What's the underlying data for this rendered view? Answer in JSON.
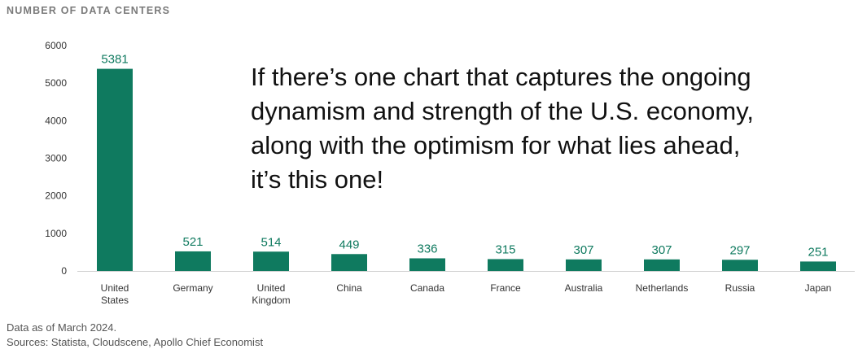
{
  "chart_data": {
    "type": "bar",
    "title": "NUMBER OF DATA CENTERS",
    "categories": [
      [
        "United",
        "States"
      ],
      [
        "Germany"
      ],
      [
        "United",
        "Kingdom"
      ],
      [
        "China"
      ],
      [
        "Canada"
      ],
      [
        "France"
      ],
      [
        "Australia"
      ],
      [
        "Netherlands"
      ],
      [
        "Russia"
      ],
      [
        "Japan"
      ]
    ],
    "values": [
      5381,
      521,
      514,
      449,
      336,
      315,
      307,
      307,
      297,
      251
    ],
    "yticks": [
      "0",
      "1000",
      "2000",
      "3000",
      "4000",
      "5000",
      "6000"
    ],
    "ylim": [
      0,
      6000
    ],
    "bar_color": "#0f7a5f",
    "grid": false
  },
  "annotation": "If there’s one chart that captures the ongoing dynamism and strength of the U.S. economy, along with the optimism for what lies ahead, it’s this one!",
  "footer": {
    "line1": "Data as of March 2024.",
    "line2": "Sources: Statista, Cloudscene, Apollo Chief Economist"
  }
}
